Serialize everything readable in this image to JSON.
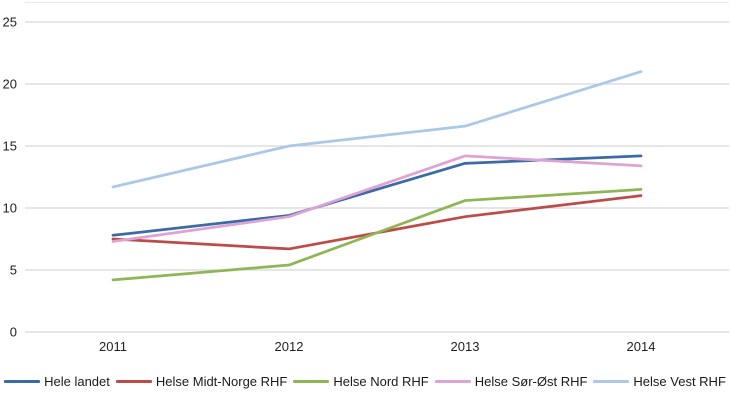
{
  "chart_data": {
    "type": "line",
    "title": "",
    "xlabel": "",
    "ylabel": "",
    "categories": [
      "2011",
      "2012",
      "2013",
      "2014"
    ],
    "series": [
      {
        "name": "Hele landet",
        "color": "#3A6BA8",
        "values": [
          7.8,
          9.4,
          13.6,
          14.2
        ]
      },
      {
        "name": "Helse Midt-Norge RHF",
        "color": "#BE4B48",
        "values": [
          7.5,
          6.7,
          9.3,
          11.0
        ]
      },
      {
        "name": "Helse Nord RHF",
        "color": "#8FB654",
        "values": [
          4.2,
          5.4,
          10.6,
          11.5
        ]
      },
      {
        "name": "Helse Sør-Øst RHF",
        "color": "#DEA2D4",
        "values": [
          7.3,
          9.3,
          14.2,
          13.4
        ]
      },
      {
        "name": "Helse Vest RHF",
        "color": "#ABC8E6",
        "values": [
          11.7,
          15.0,
          16.6,
          21.0
        ]
      }
    ],
    "ylim": [
      0,
      25
    ],
    "yticks": [
      0,
      5,
      10,
      15,
      20,
      25
    ],
    "grid": true,
    "legend_position": "bottom",
    "gridline_color": "#cdcdcd",
    "top_border_color": "#e7e7e7",
    "label_color": "#1f1f1f"
  }
}
